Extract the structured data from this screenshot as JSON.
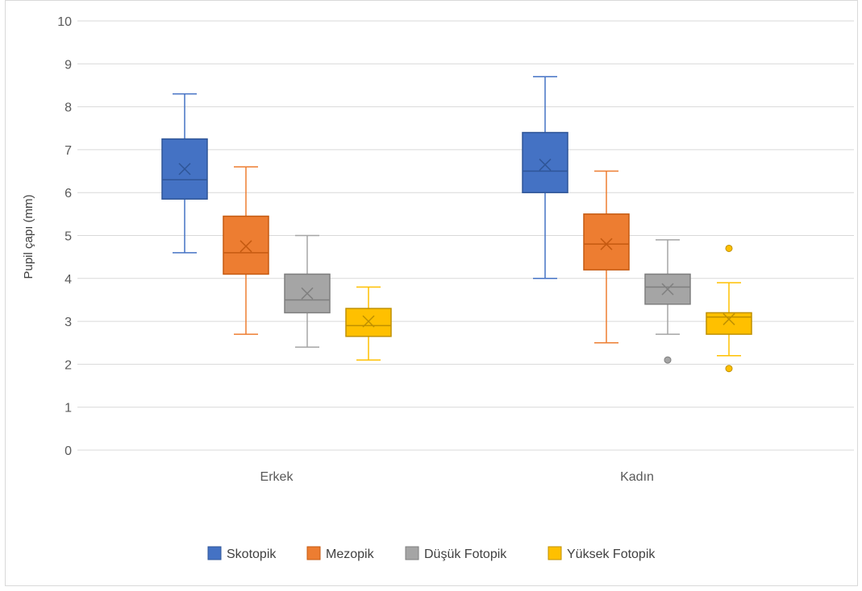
{
  "chart_data": {
    "type": "box",
    "categories": [
      "Erkek",
      "Kadın"
    ],
    "ylabel": "Pupil çapı (mm)",
    "xlabel": "",
    "ylim": [
      0,
      10
    ],
    "yticks": [
      "0",
      "1",
      "2",
      "3",
      "4",
      "5",
      "6",
      "7",
      "8",
      "9",
      "10"
    ],
    "grid": true,
    "legend_position": "bottom",
    "series": [
      {
        "name": "Skotopik",
        "color": "#4472c4",
        "fill": "#4472c4",
        "stroke": "#2f5597",
        "boxes": [
          {
            "min": 4.6,
            "q1": 5.85,
            "median": 6.3,
            "q3": 7.25,
            "max": 8.3,
            "mean": 6.55,
            "outliers": []
          },
          {
            "min": 4.0,
            "q1": 6.0,
            "median": 6.5,
            "q3": 7.4,
            "max": 8.7,
            "mean": 6.65,
            "outliers": []
          }
        ]
      },
      {
        "name": "Mezopik",
        "color": "#ed7d31",
        "fill": "#ed7d31",
        "stroke": "#c55a11",
        "boxes": [
          {
            "min": 2.7,
            "q1": 4.1,
            "median": 4.6,
            "q3": 5.45,
            "max": 6.6,
            "mean": 4.75,
            "outliers": []
          },
          {
            "min": 2.5,
            "q1": 4.2,
            "median": 4.8,
            "q3": 5.5,
            "max": 6.5,
            "mean": 4.8,
            "outliers": []
          }
        ]
      },
      {
        "name": "Düşük Fotopik",
        "color": "#a5a5a5",
        "fill": "#a5a5a5",
        "stroke": "#7f7f7f",
        "boxes": [
          {
            "min": 2.4,
            "q1": 3.2,
            "median": 3.5,
            "q3": 4.1,
            "max": 5.0,
            "mean": 3.65,
            "outliers": []
          },
          {
            "min": 2.7,
            "q1": 3.4,
            "median": 3.8,
            "q3": 4.1,
            "max": 4.9,
            "mean": 3.75,
            "outliers": [
              2.1
            ]
          }
        ]
      },
      {
        "name": "Yüksek Fotopik",
        "color": "#ffc000",
        "fill": "#ffc000",
        "stroke": "#bf9000",
        "boxes": [
          {
            "min": 2.1,
            "q1": 2.65,
            "median": 2.9,
            "q3": 3.3,
            "max": 3.8,
            "mean": 3.0,
            "outliers": []
          },
          {
            "min": 2.2,
            "q1": 2.7,
            "median": 3.1,
            "q3": 3.2,
            "max": 3.9,
            "mean": 3.05,
            "outliers": [
              4.7,
              1.9
            ]
          }
        ]
      }
    ]
  }
}
